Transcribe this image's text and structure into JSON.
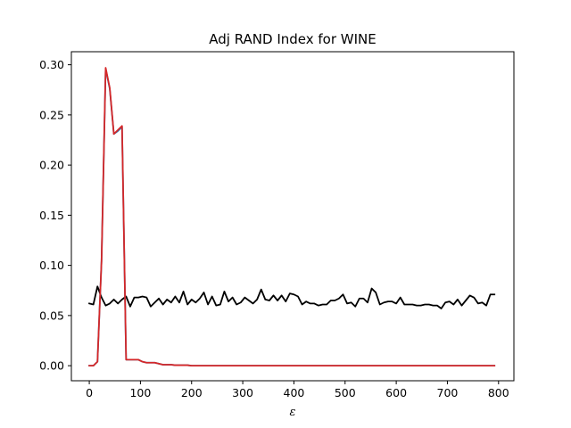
{
  "chart_data": {
    "type": "line",
    "title": "Adj RAND Index for WINE",
    "xlabel": "ε",
    "ylabel": "",
    "xlim": [
      -35,
      830
    ],
    "ylim": [
      -0.015,
      0.313
    ],
    "xticks": [
      0,
      100,
      200,
      300,
      400,
      500,
      600,
      700,
      800
    ],
    "yticks": [
      0.0,
      0.05,
      0.1,
      0.15,
      0.2,
      0.25,
      0.3
    ],
    "ytick_labels": [
      "0.00",
      "0.05",
      "0.10",
      "0.15",
      "0.20",
      "0.25",
      "0.30"
    ],
    "grid": false,
    "series": [
      {
        "color": "#000000",
        "x": [
          0,
          8,
          16,
          24,
          32,
          40,
          48,
          56,
          64,
          72,
          80,
          88,
          96,
          104,
          112,
          120,
          128,
          136,
          144,
          152,
          160,
          168,
          176,
          184,
          192,
          200,
          208,
          216,
          224,
          232,
          240,
          248,
          256,
          264,
          272,
          280,
          288,
          296,
          304,
          312,
          320,
          328,
          336,
          344,
          352,
          360,
          368,
          376,
          384,
          392,
          400,
          408,
          416,
          424,
          432,
          440,
          448,
          456,
          464,
          472,
          480,
          488,
          496,
          504,
          512,
          520,
          528,
          536,
          544,
          552,
          560,
          568,
          576,
          584,
          592,
          600,
          608,
          616,
          624,
          632,
          640,
          648,
          656,
          664,
          672,
          680,
          688,
          696,
          704,
          712,
          720,
          728,
          736,
          744,
          752,
          760,
          768,
          776,
          784,
          792
        ],
        "y": [
          0.062,
          0.061,
          0.079,
          0.068,
          0.06,
          0.062,
          0.066,
          0.062,
          0.066,
          0.069,
          0.059,
          0.068,
          0.068,
          0.069,
          0.068,
          0.059,
          0.063,
          0.067,
          0.061,
          0.066,
          0.063,
          0.069,
          0.063,
          0.074,
          0.061,
          0.066,
          0.063,
          0.067,
          0.073,
          0.061,
          0.069,
          0.06,
          0.061,
          0.074,
          0.064,
          0.068,
          0.061,
          0.063,
          0.068,
          0.065,
          0.062,
          0.066,
          0.076,
          0.066,
          0.065,
          0.07,
          0.065,
          0.07,
          0.064,
          0.072,
          0.071,
          0.069,
          0.061,
          0.064,
          0.062,
          0.062,
          0.06,
          0.061,
          0.061,
          0.065,
          0.065,
          0.067,
          0.071,
          0.062,
          0.063,
          0.059,
          0.067,
          0.067,
          0.063,
          0.077,
          0.073,
          0.061,
          0.063,
          0.064,
          0.064,
          0.062,
          0.068,
          0.061,
          0.061,
          0.061,
          0.06,
          0.06,
          0.061,
          0.061,
          0.06,
          0.06,
          0.057,
          0.063,
          0.064,
          0.061,
          0.066,
          0.06,
          0.065,
          0.07,
          0.068,
          0.062,
          0.063,
          0.06,
          0.071,
          0.071
        ]
      },
      {
        "color": "#1f77b4",
        "x": [
          0,
          8,
          16,
          24,
          32,
          40,
          48,
          56,
          64,
          72,
          80,
          88,
          96,
          104,
          112,
          120,
          128,
          136,
          144,
          152,
          160,
          168,
          176,
          184,
          192,
          200,
          240,
          280,
          320,
          360,
          400,
          440,
          480,
          520,
          560,
          600,
          640,
          680,
          720,
          760,
          792
        ],
        "y": [
          0,
          0,
          0.004,
          0.105,
          0.296,
          0.276,
          0.231,
          0.234,
          0.238,
          0.006,
          0.006,
          0.006,
          0.006,
          0.004,
          0.003,
          0.003,
          0.003,
          0.002,
          0.001,
          0.001,
          0.001,
          0.0005,
          0.0005,
          0.0005,
          0.0005,
          0,
          0,
          0,
          0,
          0,
          0,
          0,
          0,
          0,
          0,
          0,
          0,
          0,
          0,
          0,
          0
        ]
      },
      {
        "color": "#d62728",
        "x": [
          0,
          8,
          16,
          24,
          32,
          40,
          48,
          56,
          64,
          72,
          80,
          88,
          96,
          104,
          112,
          120,
          128,
          136,
          144,
          152,
          160,
          168,
          176,
          184,
          192,
          200,
          240,
          280,
          320,
          360,
          400,
          440,
          480,
          520,
          560,
          600,
          640,
          680,
          720,
          760,
          792
        ],
        "y": [
          0,
          0,
          0.004,
          0.105,
          0.297,
          0.277,
          0.231,
          0.235,
          0.239,
          0.006,
          0.006,
          0.006,
          0.006,
          0.004,
          0.003,
          0.003,
          0.003,
          0.002,
          0.001,
          0.001,
          0.001,
          0.0005,
          0.0005,
          0.0005,
          0.0005,
          0,
          0,
          0,
          0,
          0,
          0,
          0,
          0,
          0,
          0,
          0,
          0,
          0,
          0,
          0,
          0
        ]
      }
    ]
  }
}
